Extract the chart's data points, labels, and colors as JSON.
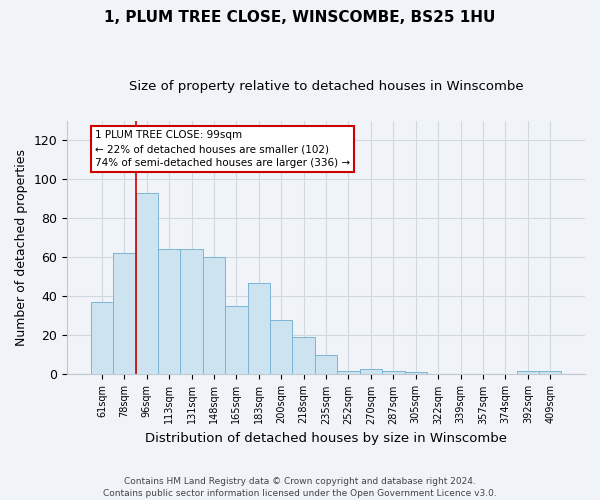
{
  "title": "1, PLUM TREE CLOSE, WINSCOMBE, BS25 1HU",
  "subtitle": "Size of property relative to detached houses in Winscombe",
  "xlabel": "Distribution of detached houses by size in Winscombe",
  "ylabel": "Number of detached properties",
  "categories": [
    "61sqm",
    "78sqm",
    "96sqm",
    "113sqm",
    "131sqm",
    "148sqm",
    "165sqm",
    "183sqm",
    "200sqm",
    "218sqm",
    "235sqm",
    "252sqm",
    "270sqm",
    "287sqm",
    "305sqm",
    "322sqm",
    "339sqm",
    "357sqm",
    "374sqm",
    "392sqm",
    "409sqm"
  ],
  "values": [
    37,
    62,
    93,
    64,
    64,
    60,
    35,
    47,
    28,
    19,
    10,
    2,
    3,
    2,
    1,
    0,
    0,
    0,
    0,
    2,
    2
  ],
  "bar_color": "#cde4f0",
  "bar_edge_color": "#7ab4d4",
  "annotation_line1": "1 PLUM TREE CLOSE: 99sqm",
  "annotation_line2": "← 22% of detached houses are smaller (102)",
  "annotation_line3": "74% of semi-detached houses are larger (336) →",
  "ylim": [
    0,
    130
  ],
  "yticks": [
    0,
    20,
    40,
    60,
    80,
    100,
    120
  ],
  "footer_line1": "Contains HM Land Registry data © Crown copyright and database right 2024.",
  "footer_line2": "Contains public sector information licensed under the Open Government Licence v3.0.",
  "background_color": "#f0f4f8",
  "annotation_box_color": "#ffffff",
  "annotation_box_edge": "#cc0000",
  "red_line_index": 2
}
